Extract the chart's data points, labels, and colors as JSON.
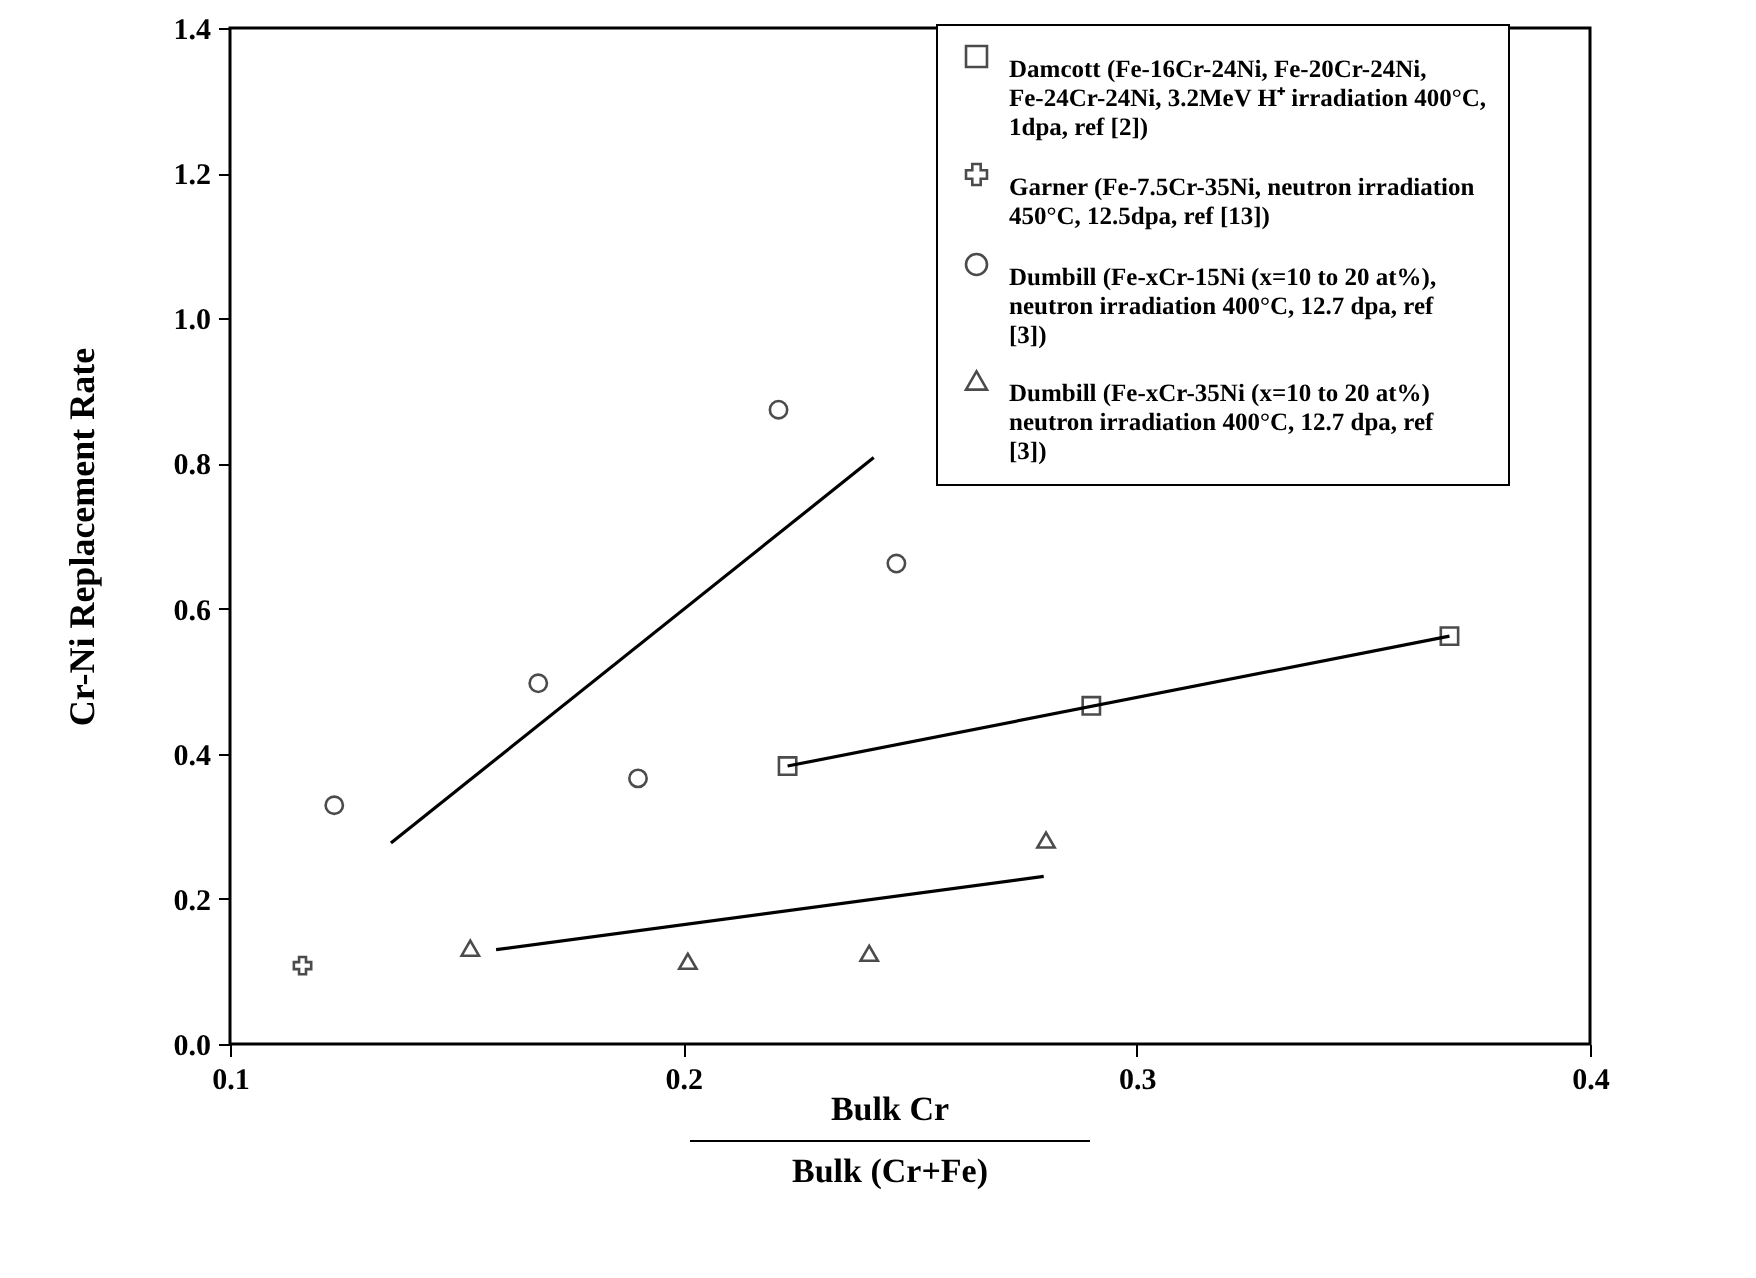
{
  "chart_data": {
    "type": "scatter",
    "xlabel": "Bulk Cr\nBulk (Cr+Fe)",
    "ylabel": "Cr-Ni Replacement Rate",
    "xlim": [
      0.1,
      0.4
    ],
    "xticks": [
      0.1,
      0.2,
      0.3,
      0.4
    ],
    "ylim": [
      0,
      1.4
    ],
    "yticks": [
      {
        "value": 0,
        "label": "0.0"
      },
      0.2,
      0.4,
      0.6,
      0.8,
      {
        "value": 1,
        "label": "1.0"
      },
      1.2,
      1.4
    ],
    "legend": "top right",
    "series": [
      {
        "name": "Damcott (Fe-16Cr-24Ni, Fe-20Cr-24Ni, Fe-24Cr-24Ni, 3.2MeV H⁺ irradiation 400°C, 1dpa, ref [2])",
        "marker": "square",
        "color": "#000000",
        "x": [
          0.223,
          0.29,
          0.369
        ],
        "values": [
          0.383,
          0.466,
          0.562
        ]
      },
      {
        "name": "Garner (Fe-7.5Cr-35Ni, neutron irradiation 450°C, 12.5dpa, ref [13])",
        "marker": "cross",
        "color": "#000000",
        "x": [
          0.116
        ],
        "values": [
          0.108
        ]
      },
      {
        "name": "Dumbill (Fe-xCr-15Ni (x=10 to 20 at%), neutron irradiation 400°C, 12.7 dpa, ref [3])",
        "marker": "circle",
        "color": "#000000",
        "x": [
          0.123,
          0.168,
          0.19,
          0.221,
          0.247
        ],
        "values": [
          0.329,
          0.497,
          0.366,
          0.874,
          0.662
        ]
      },
      {
        "name": "Dumbill (Fe-xCr-35Ni (x=10 to 20 at%) neutron irradiation 400°C, 12.7 dpa, ref [3])",
        "marker": "triangle",
        "color": "#000000",
        "x": [
          0.153,
          0.201,
          0.241,
          0.28
        ],
        "values": [
          0.132,
          0.114,
          0.125,
          0.281
        ]
      },
      {
        "type": "line",
        "marker": "none",
        "color": "#000000",
        "x": [
          0.1355,
          0.242
        ],
        "values": [
          0.277,
          0.808
        ]
      },
      {
        "type": "line",
        "marker": "none",
        "color": "#000000",
        "x": [
          0.223,
          0.369
        ],
        "values": [
          0.383,
          0.562
        ]
      },
      {
        "type": "line",
        "marker": "none",
        "color": "#000000",
        "x": [
          0.1587,
          0.2795
        ],
        "values": [
          0.13,
          0.231
        ]
      }
    ]
  }
}
